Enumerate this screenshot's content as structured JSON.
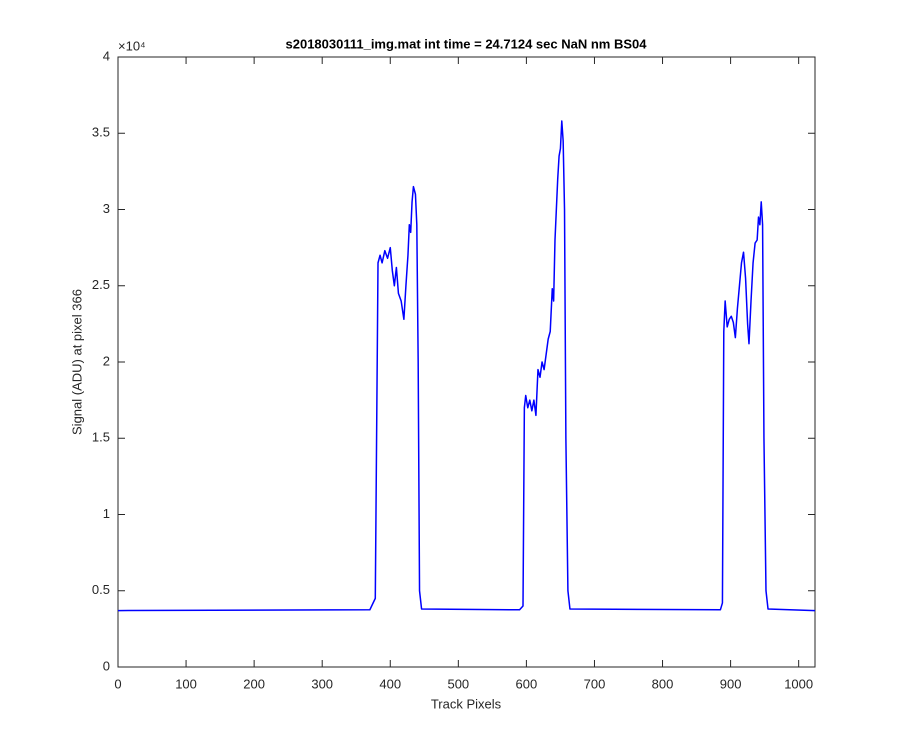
{
  "chart_data": {
    "type": "line",
    "title": "s2018030111_img.mat int time = 24.7124 sec  NaN nm BS04",
    "xlabel": "Track Pixels",
    "ylabel": "Signal (ADU) at pixel 366",
    "y_exponent_label": "×10⁴",
    "xlim": [
      0,
      1024
    ],
    "xticks": [
      0,
      100,
      200,
      300,
      400,
      500,
      600,
      700,
      800,
      900,
      1000
    ],
    "ylim": [
      0,
      40000
    ],
    "yticks": [
      0,
      {
        "value": 5000,
        "label": "0.5"
      },
      {
        "value": 10000,
        "label": "1"
      },
      {
        "value": 15000,
        "label": "1.5"
      },
      {
        "value": 20000,
        "label": "2"
      },
      {
        "value": 25000,
        "label": "2.5"
      },
      {
        "value": 30000,
        "label": "3"
      },
      {
        "value": 35000,
        "label": "3.5"
      },
      {
        "value": 40000,
        "label": "4"
      }
    ],
    "grid": false,
    "series": [
      {
        "color": "#0000ff",
        "x": [
          0,
          370,
          378,
          382,
          385,
          388,
          392,
          396,
          400,
          403,
          406,
          409,
          412,
          416,
          420,
          423,
          426,
          428,
          430,
          432,
          434,
          437,
          439,
          441,
          443,
          446,
          590,
          595,
          597,
          599,
          602,
          605,
          608,
          611,
          614,
          617,
          620,
          623,
          626,
          629,
          632,
          635,
          638,
          640,
          642,
          644,
          646,
          648,
          650,
          652,
          654,
          656,
          658,
          661,
          664,
          885,
          888,
          890,
          892,
          895,
          898,
          901,
          904,
          907,
          910,
          913,
          916,
          919,
          922,
          925,
          927,
          930,
          933,
          936,
          939,
          941,
          943,
          945,
          947,
          949,
          952,
          955,
          1024
        ],
        "values": [
          3700,
          3750,
          4500,
          26500,
          27000,
          26500,
          27300,
          26800,
          27500,
          26000,
          25000,
          26200,
          24500,
          24000,
          22800,
          25000,
          27000,
          29000,
          28500,
          30500,
          31500,
          31000,
          29000,
          20000,
          5000,
          3800,
          3750,
          4000,
          17000,
          17800,
          17000,
          17500,
          16800,
          17500,
          16500,
          19500,
          19000,
          20000,
          19500,
          20500,
          21500,
          22000,
          24800,
          24000,
          28000,
          30000,
          32000,
          33500,
          34000,
          35800,
          34500,
          30000,
          15000,
          5000,
          3800,
          3750,
          4200,
          22000,
          24000,
          22300,
          22800,
          23000,
          22600,
          21600,
          23500,
          25000,
          26500,
          27200,
          25500,
          22500,
          21200,
          24000,
          26500,
          27800,
          28000,
          29500,
          29000,
          30500,
          29000,
          15000,
          5000,
          3800,
          3700
        ]
      }
    ]
  }
}
